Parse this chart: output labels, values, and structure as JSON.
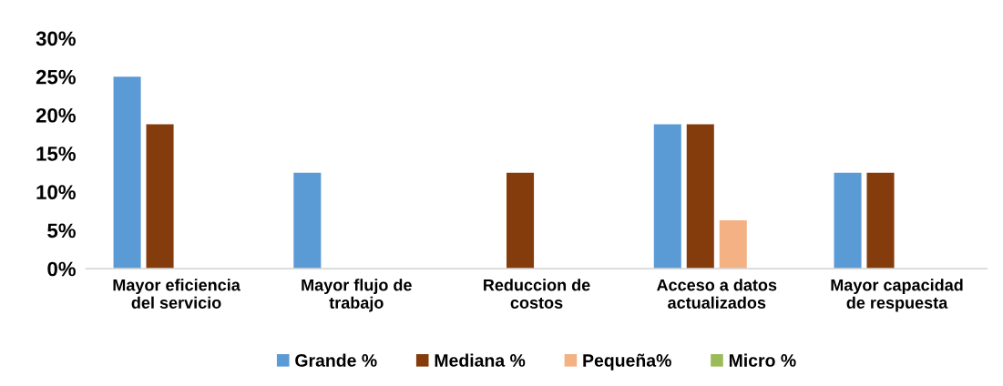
{
  "chart_data": {
    "type": "bar",
    "categories": [
      "Mayor eficiencia\ndel servicio",
      "Mayor flujo de\ntrabajo",
      "Reduccion de\ncostos",
      "Acceso a datos\nactualizados",
      "Mayor capacidad\nde respuesta"
    ],
    "series": [
      {
        "name": "Grande %",
        "color": "#5b9bd5",
        "values": [
          25,
          12.5,
          0,
          18.8,
          12.5
        ]
      },
      {
        "name": "Mediana %",
        "color": "#843c0c",
        "values": [
          18.8,
          0,
          12.5,
          18.8,
          12.5
        ]
      },
      {
        "name": "Pequeña%",
        "color": "#f4b183",
        "values": [
          0,
          0,
          0,
          6.3,
          0
        ]
      },
      {
        "name": "Micro %",
        "color": "#9bbb59",
        "values": [
          0,
          0,
          0,
          0,
          0
        ]
      }
    ],
    "ylim": [
      0,
      30
    ],
    "yticks": [
      {
        "value": 0,
        "label": "0%"
      },
      {
        "value": 5,
        "label": "5%"
      },
      {
        "value": 10,
        "label": "10%"
      },
      {
        "value": 15,
        "label": "15%"
      },
      {
        "value": 20,
        "label": "20%"
      },
      {
        "value": 25,
        "label": "25%"
      },
      {
        "value": 30,
        "label": "30%"
      }
    ],
    "grid": false,
    "legend": "bottom"
  }
}
